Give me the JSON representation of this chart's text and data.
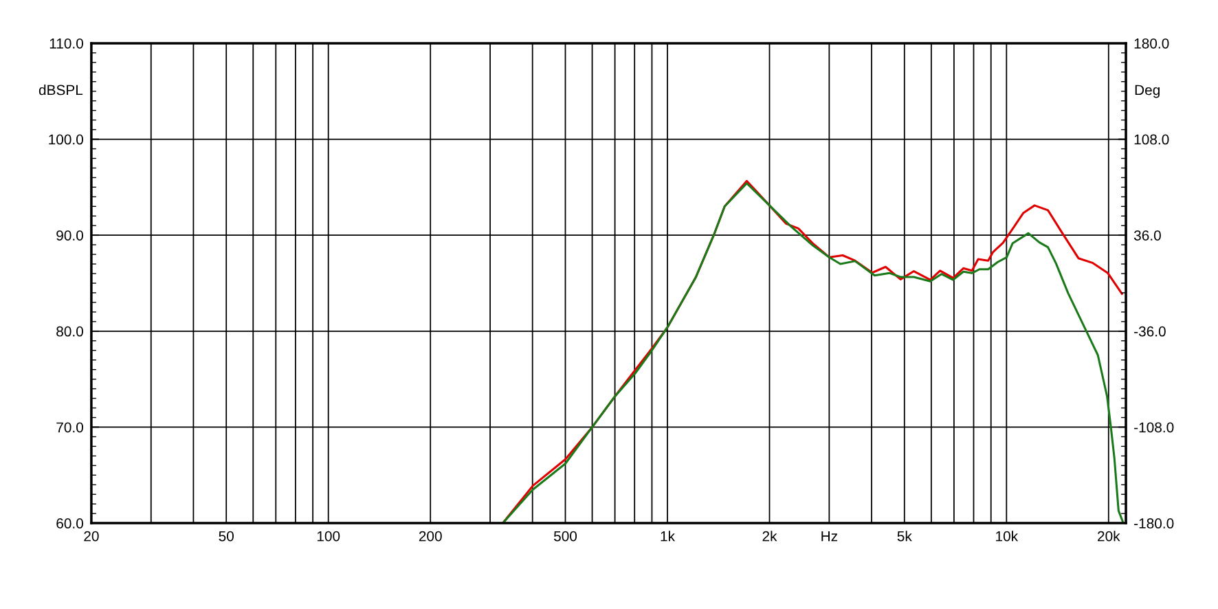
{
  "chart_data": {
    "type": "line",
    "ylabel": "dBSPL",
    "y2label": "Deg",
    "log": "x",
    "grid": true,
    "marker": "none",
    "line_style": "solid",
    "xlim": [
      20,
      22500
    ],
    "xticks": [
      20,
      {
        "value": 30,
        "label": null
      },
      {
        "value": 40,
        "label": null
      },
      50,
      {
        "value": 60,
        "label": null
      },
      {
        "value": 70,
        "label": null
      },
      {
        "value": 80,
        "label": null
      },
      {
        "value": 90,
        "label": null
      },
      100,
      200,
      {
        "value": 300,
        "label": null
      },
      {
        "value": 400,
        "label": null
      },
      500,
      {
        "value": 600,
        "label": null
      },
      {
        "value": 700,
        "label": null
      },
      {
        "value": 800,
        "label": null
      },
      {
        "value": 900,
        "label": null
      },
      {
        "value": 1000,
        "label": "1k"
      },
      {
        "value": 2000,
        "label": "2k"
      },
      {
        "value": 3000,
        "label": "Hz"
      },
      {
        "value": 4000,
        "label": null
      },
      {
        "value": 5000,
        "label": "5k"
      },
      {
        "value": 6000,
        "label": null
      },
      {
        "value": 7000,
        "label": null
      },
      {
        "value": 8000,
        "label": null
      },
      {
        "value": 9000,
        "label": null
      },
      {
        "value": 10000,
        "label": "10k"
      },
      {
        "value": 20000,
        "label": "20k"
      }
    ],
    "ylim": [
      60,
      110
    ],
    "yticks": [
      {
        "value": 60,
        "label": "60.0"
      },
      {
        "value": 70,
        "label": "70.0"
      },
      {
        "value": 80,
        "label": "80.0"
      },
      {
        "value": 90,
        "label": "90.0"
      },
      {
        "value": 100,
        "label": "100.0"
      },
      {
        "value": 110,
        "label": "110.0"
      }
    ],
    "y2lim": [
      -180,
      180
    ],
    "y2ticks": [
      {
        "value": -180,
        "label": "-180.0"
      },
      {
        "value": -108,
        "label": "-108.0"
      },
      {
        "value": -36,
        "label": "-36.0"
      },
      {
        "value": 36,
        "label": "36.0"
      },
      {
        "value": 108,
        "label": "108.0"
      },
      {
        "value": 180,
        "label": "180.0"
      }
    ],
    "series": [
      {
        "color": "#e00000",
        "x": [
          327,
          401,
          500,
          600,
          700,
          803,
          900,
          1000,
          1212,
          1375,
          1475,
          1714,
          2000,
          2239,
          2433,
          2692,
          3000,
          3288,
          3575,
          4020,
          4400,
          4870,
          5330,
          5960,
          6370,
          6960,
          7460,
          7910,
          8250,
          8830,
          9130,
          9760,
          10420,
          11200,
          12100,
          13250,
          14500,
          16300,
          17980,
          19900,
          21900
        ],
        "values": [
          60.0,
          63.9,
          66.65,
          70.0,
          73.2,
          75.95,
          78.2,
          80.4,
          85.6,
          90.15,
          93.0,
          95.65,
          93.1,
          91.2,
          90.7,
          89.1,
          87.7,
          87.9,
          87.35,
          86.1,
          86.7,
          85.4,
          86.25,
          85.35,
          86.3,
          85.55,
          86.55,
          86.3,
          87.5,
          87.35,
          88.25,
          89.2,
          90.65,
          92.3,
          93.1,
          92.6,
          90.4,
          87.6,
          87.1,
          86.05,
          83.9
        ]
      },
      {
        "color": "#1a7a1a",
        "x": [
          327,
          401,
          500,
          600,
          700,
          803,
          900,
          1000,
          1212,
          1375,
          1475,
          1714,
          2000,
          2316,
          2692,
          3000,
          3236,
          3575,
          4085,
          4520,
          4870,
          5330,
          5960,
          6430,
          6960,
          7460,
          7910,
          8320,
          8830,
          9420,
          10010,
          10420,
          11600,
          12500,
          13250,
          14000,
          15200,
          17200,
          18600,
          19800,
          20300,
          20800,
          21400,
          22000
        ],
        "values": [
          60.0,
          63.5,
          66.2,
          70.0,
          73.2,
          75.6,
          78.0,
          80.4,
          85.6,
          90.15,
          93.0,
          95.4,
          93.1,
          90.9,
          88.9,
          87.7,
          87.0,
          87.3,
          85.8,
          86.05,
          85.65,
          85.65,
          85.2,
          85.95,
          85.35,
          86.2,
          86.05,
          86.45,
          86.45,
          87.2,
          87.7,
          89.15,
          90.2,
          89.25,
          88.75,
          87.05,
          83.95,
          80.0,
          77.5,
          73.2,
          70.1,
          66.8,
          61.3,
          60.2
        ]
      }
    ]
  }
}
